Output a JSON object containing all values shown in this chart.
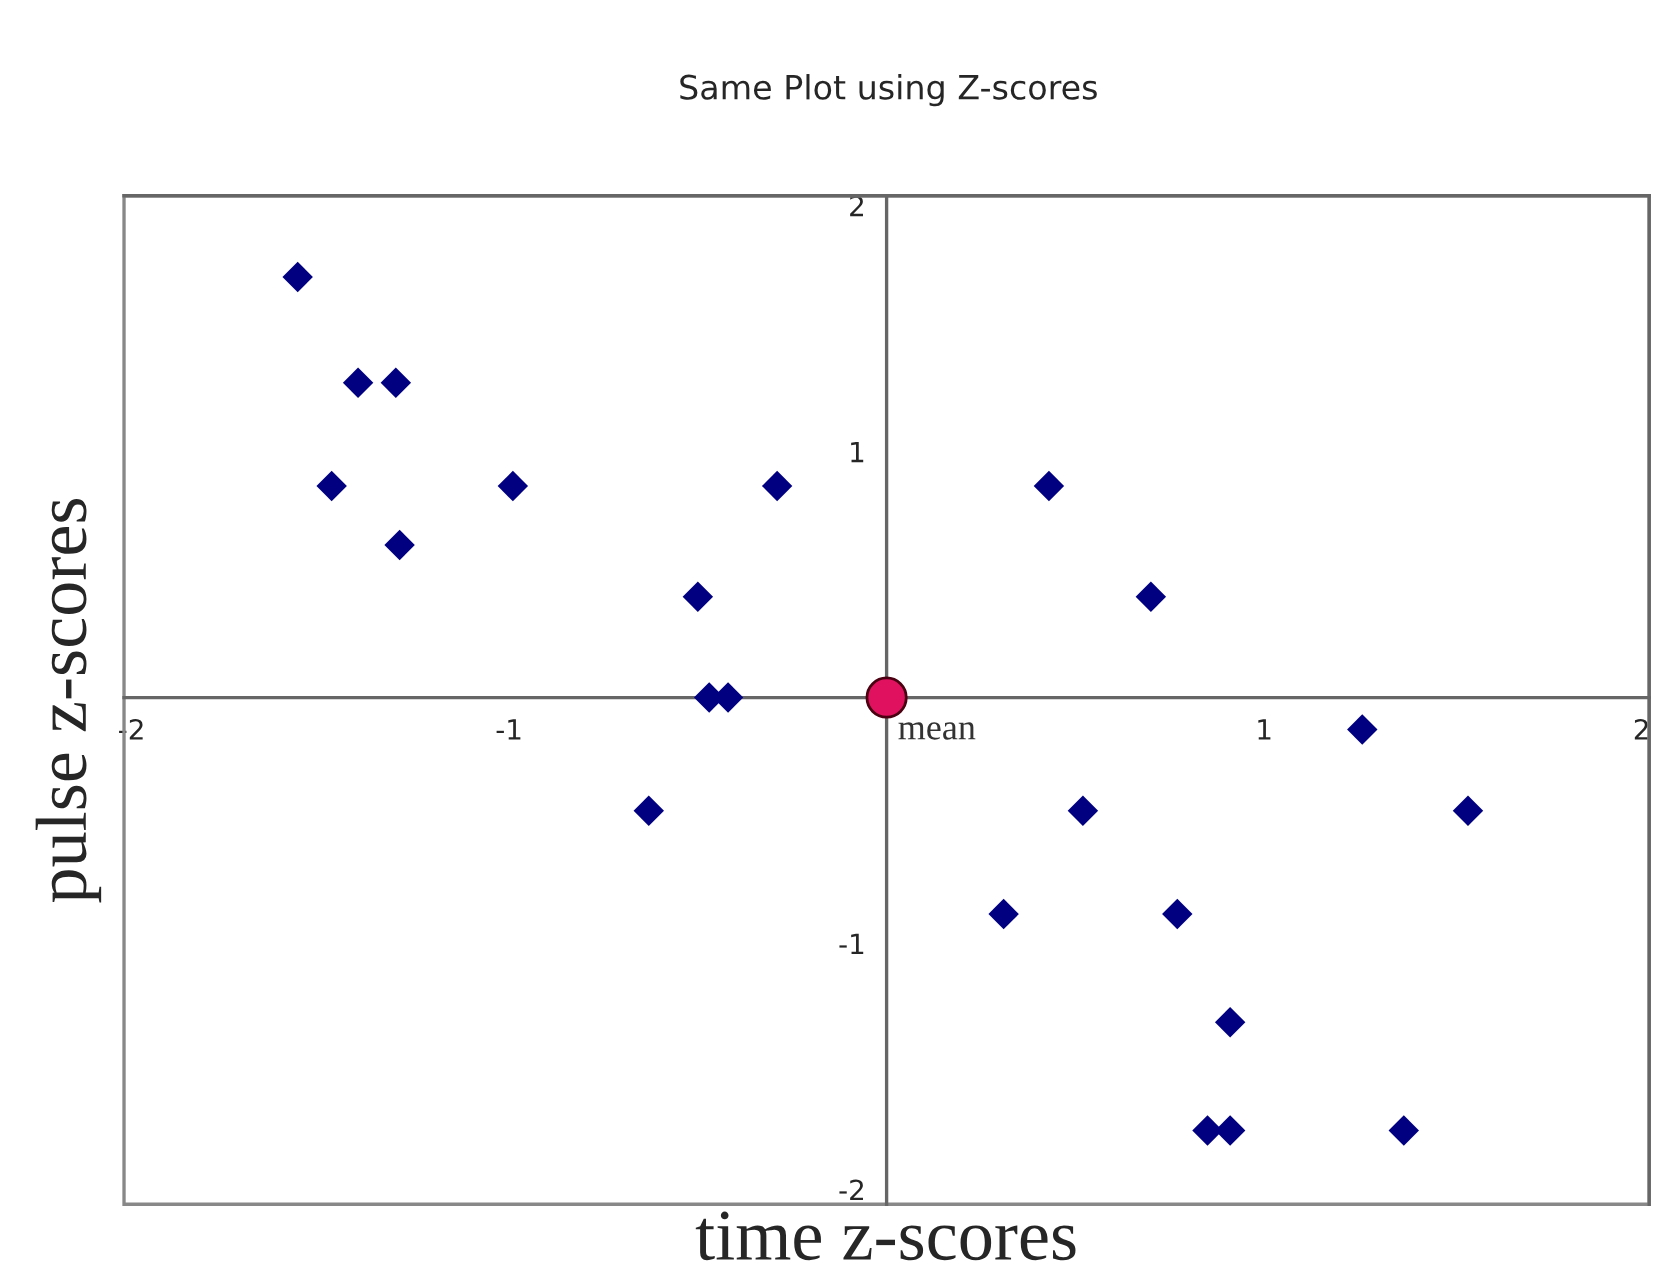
{
  "chart_data": {
    "type": "scatter",
    "title": "Same Plot using Z-scores",
    "xlabel": "time z-scores",
    "ylabel": "pulse z-scores",
    "series": [
      {
        "color": "#000080",
        "marker": "diamond",
        "x": [
          -1.56,
          -1.4,
          -1.3,
          -1.47,
          -0.99,
          -1.29,
          -0.29,
          -0.5,
          -0.47,
          -0.42,
          -0.63,
          0.43,
          0.7,
          1.26,
          0.52,
          1.54,
          0.31,
          0.77,
          0.91,
          0.85,
          0.91,
          1.37
        ],
        "values": [
          1.71,
          1.28,
          1.28,
          0.86,
          0.86,
          0.62,
          0.86,
          0.41,
          0,
          0,
          -0.46,
          0.86,
          0.41,
          -0.13,
          -0.46,
          -0.46,
          -0.88,
          -0.88,
          -1.32,
          -1.76,
          -1.76,
          -1.76
        ]
      },
      {
        "name": "mean",
        "color": "#e0115f",
        "marker": "circle",
        "x": [
          0
        ],
        "values": [
          0
        ]
      }
    ],
    "xlim": [
      -2.02,
      2.02
    ],
    "ylim": [
      -2.06,
      2.04
    ],
    "xticks": [
      -2,
      -1,
      1,
      2
    ],
    "yticks": [
      -2,
      -1,
      1,
      2
    ],
    "grid": false,
    "legend": false
  }
}
